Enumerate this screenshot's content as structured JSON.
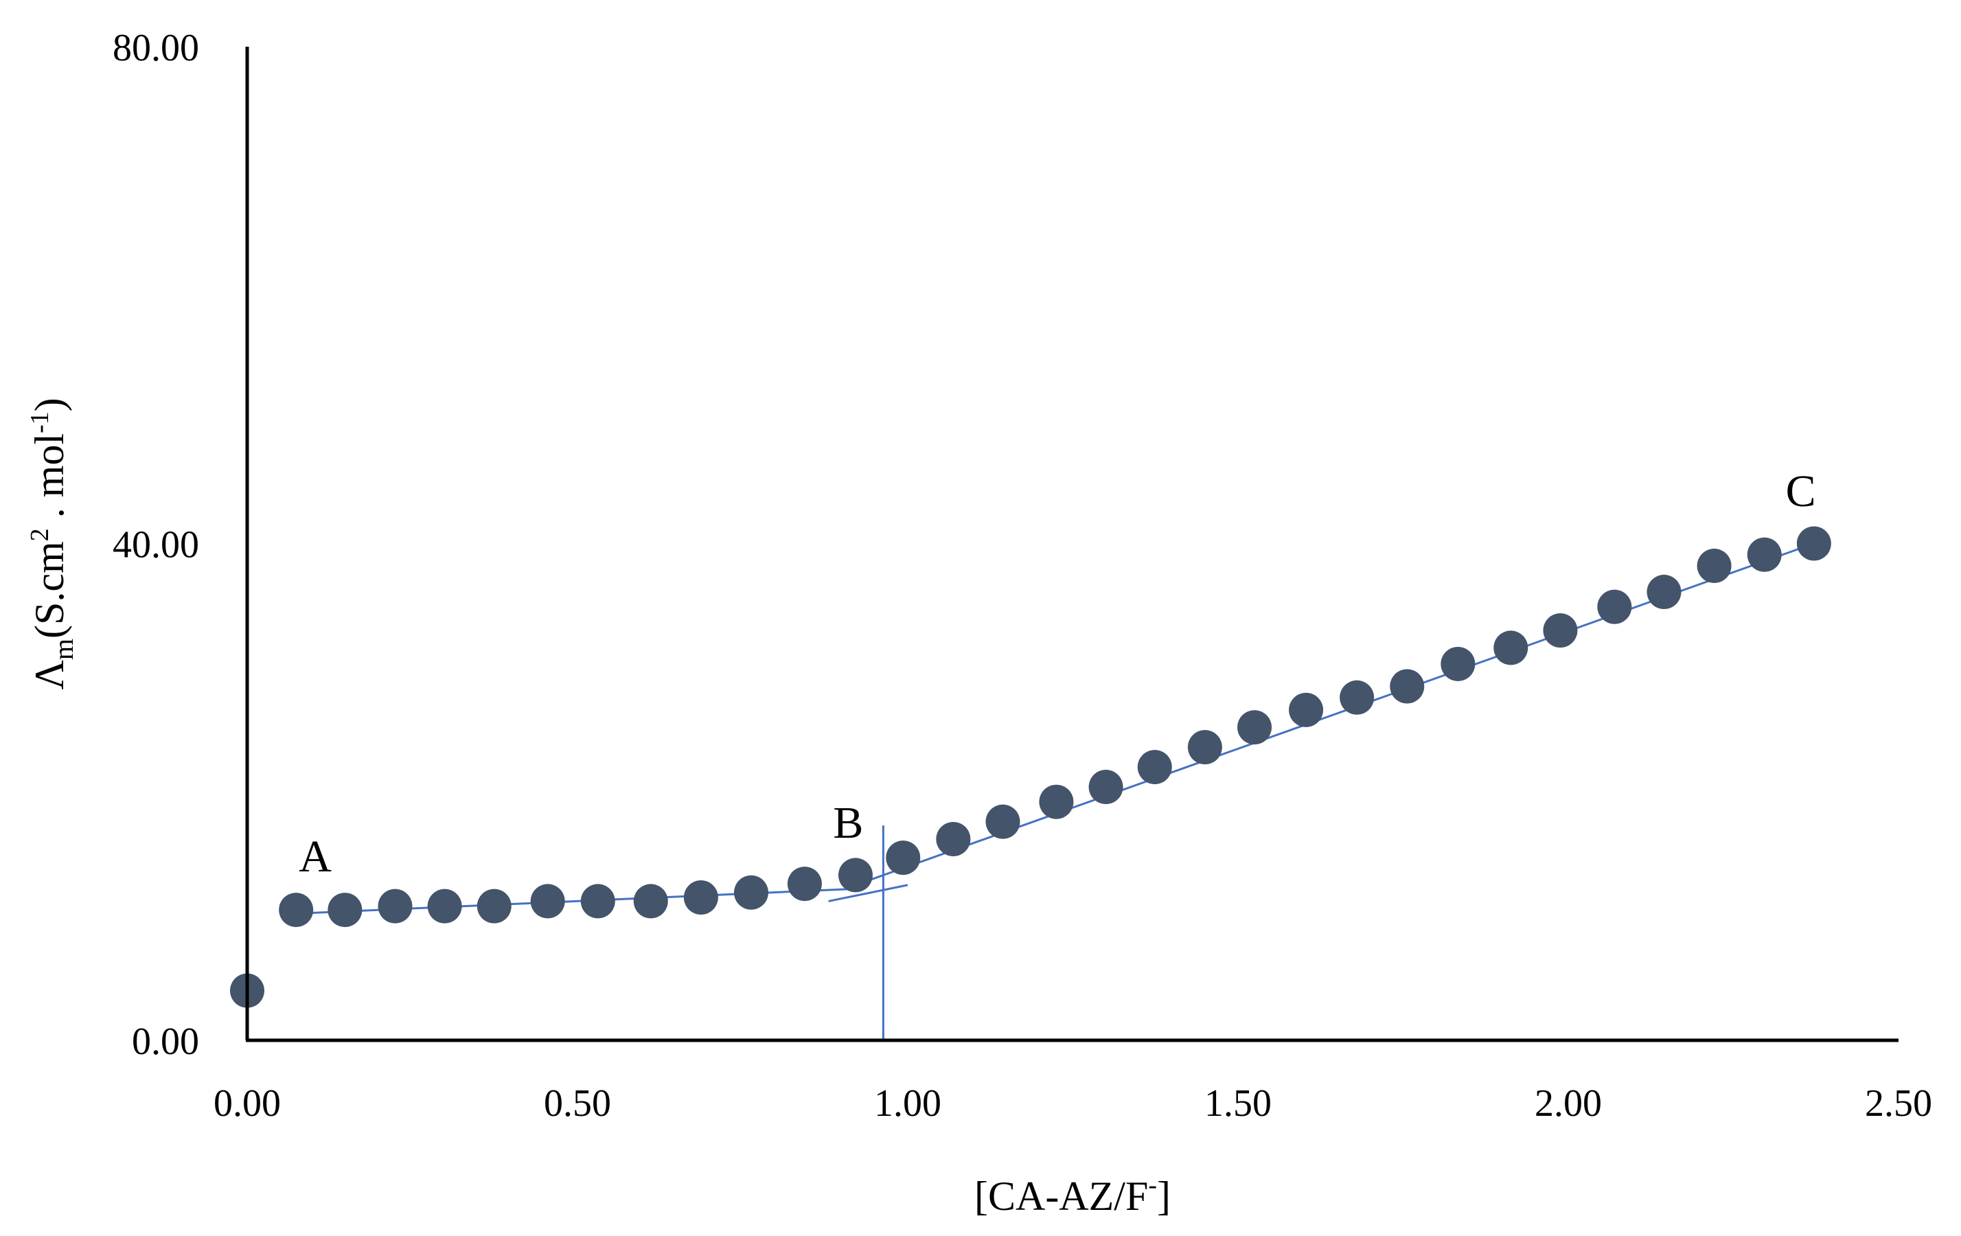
{
  "chart_data": {
    "type": "scatter",
    "title": "",
    "xlabel": {
      "text": "[CA-AZ/F",
      "sup": "-",
      "close": "]"
    },
    "ylabel": {
      "symbol": "Λ",
      "sub": "m",
      "unit_a": "(S.cm",
      "sup_a": "2",
      "unit_b": " . mol",
      "sup_b": "-1",
      "close": ")"
    },
    "xlim": [
      0,
      2.5
    ],
    "ylim": [
      0,
      80
    ],
    "xticks": [
      "0.00",
      "0.50",
      "1.00",
      "1.50",
      "2.00",
      "2.50"
    ],
    "yticks": [
      "0.00",
      "40.00",
      "80.00"
    ],
    "xtick_values": [
      0,
      0.5,
      1.0,
      1.5,
      2.0,
      2.5
    ],
    "ytick_values": [
      0,
      40,
      80
    ],
    "grid": false,
    "series": [
      {
        "marker_color": "#44546a",
        "x": [
          0.0,
          0.074,
          0.148,
          0.224,
          0.299,
          0.374,
          0.455,
          0.531,
          0.611,
          0.687,
          0.763,
          0.844,
          0.921,
          0.993,
          1.069,
          1.144,
          1.225,
          1.3,
          1.374,
          1.45,
          1.525,
          1.603,
          1.68,
          1.756,
          1.833,
          1.913,
          1.988,
          2.07,
          2.145,
          2.221,
          2.297,
          2.372
        ],
        "y": [
          4.0,
          10.5,
          10.5,
          10.8,
          10.8,
          10.8,
          11.2,
          11.2,
          11.2,
          11.5,
          11.9,
          12.6,
          13.3,
          14.7,
          16.2,
          17.6,
          19.2,
          20.4,
          22.0,
          23.6,
          25.2,
          26.6,
          27.6,
          28.5,
          30.3,
          31.6,
          33.0,
          34.9,
          36.1,
          38.2,
          39.1,
          40.0
        ]
      }
    ],
    "trend_lines": [
      {
        "color": "#4472c4",
        "from": [
          0.074,
          10.2
        ],
        "to": [
          0.921,
          12.2
        ]
      },
      {
        "color": "#4472c4",
        "from": [
          0.88,
          11.2
        ],
        "to": [
          1.0,
          12.5
        ]
      },
      {
        "color": "#4472c4",
        "from": [
          0.921,
          12.5
        ],
        "to": [
          2.372,
          40.0
        ]
      }
    ],
    "vertical_marker": {
      "color": "#4472c4",
      "x": 0.963,
      "y_from": 0,
      "y_to": 17.3
    },
    "annotations": [
      {
        "text": "A",
        "x": 0.103,
        "y": 13.6
      },
      {
        "text": "B",
        "x": 0.91,
        "y": 16.3
      },
      {
        "text": "C",
        "x": 2.352,
        "y": 43.0
      }
    ]
  }
}
